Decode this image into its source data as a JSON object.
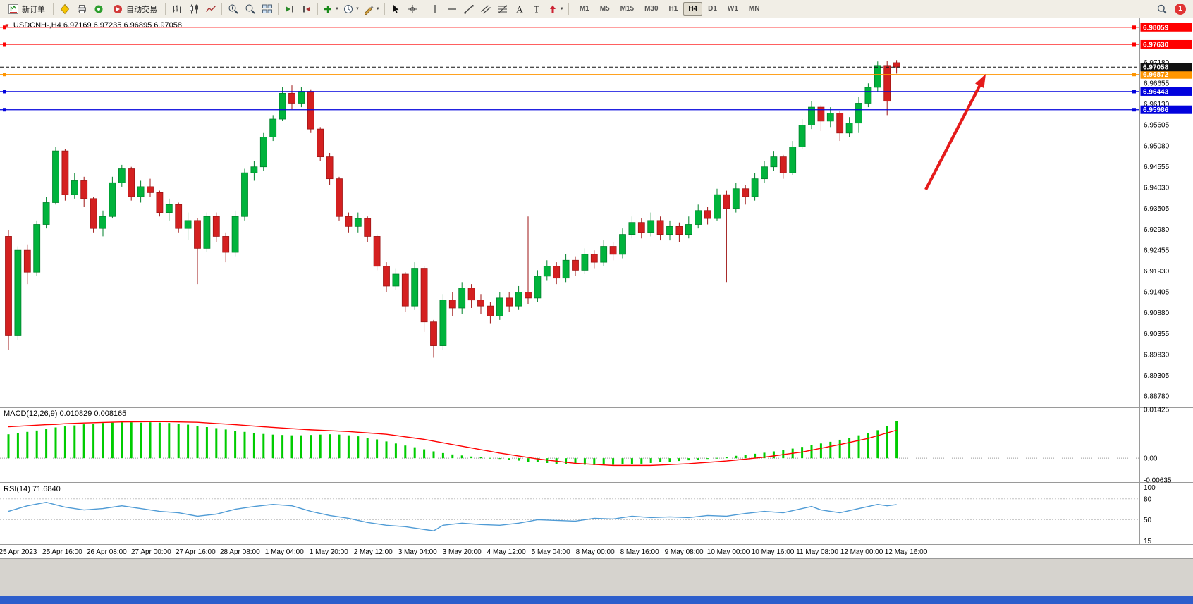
{
  "toolbar": {
    "new_order_label": "新订单",
    "autotrading_label": "自动交易",
    "timeframes": [
      "M1",
      "M5",
      "M15",
      "M30",
      "H1",
      "H4",
      "D1",
      "W1",
      "MN"
    ],
    "active_timeframe": "H4",
    "notification_count": "1",
    "icon_names": [
      "new-order",
      "metaeditor",
      "print-preview",
      "alerts",
      "autotrading",
      "bar-chart",
      "candlestick-chart",
      "line-chart",
      "zoom-in",
      "zoom-out",
      "tile-windows",
      "auto-scroll",
      "chart-shift",
      "indicators",
      "periods",
      "templates",
      "cursor",
      "crosshair",
      "vertical-line",
      "horizontal-line",
      "trendline",
      "equidistant-channel",
      "fibonacci",
      "text",
      "text-label",
      "arrows",
      "search",
      "notifications"
    ]
  },
  "chart": {
    "header": "USDCNH-,H4 6.97169 6.97235 6.96895 6.97058",
    "symbol": "USDCNH-",
    "timeframe": "H4",
    "ohlc": {
      "open": "6.97169",
      "high": "6.97235",
      "low": "6.96895",
      "close": "6.97058"
    },
    "macd_label": "MACD(12,26,9) 0.010829 0.008165",
    "rsi_label": "RSI(14) 71.6840"
  },
  "chart_data": {
    "type": "candlestick",
    "symbol": "USDCNH",
    "period": "H4",
    "price_range": [
      6.885,
      6.9825
    ],
    "price_axis_ticks": [
      "6.97180",
      "6.96655",
      "6.96130",
      "6.95605",
      "6.95080",
      "6.94555",
      "6.94030",
      "6.93505",
      "6.92980",
      "6.92455",
      "6.91930",
      "6.91405",
      "6.90880",
      "6.90355",
      "6.89830",
      "6.89305",
      "6.88780"
    ],
    "time_axis_labels": [
      "25 Apr 2023",
      "25 Apr 16:00",
      "26 Apr 08:00",
      "27 Apr 00:00",
      "27 Apr 16:00",
      "28 Apr 08:00",
      "1 May 04:00",
      "1 May 20:00",
      "2 May 12:00",
      "3 May 04:00",
      "3 May 20:00",
      "4 May 12:00",
      "5 May 04:00",
      "8 May 00:00",
      "8 May 16:00",
      "9 May 08:00",
      "10 May 00:00",
      "10 May 16:00",
      "11 May 08:00",
      "12 May 00:00",
      "12 May 16:00"
    ],
    "colors": {
      "bull": "#00b33c",
      "bull_stroke": "#00822b",
      "bear": "#d42020",
      "bear_stroke": "#9e1515",
      "bid_line": "#111111",
      "arrow": "#e51b1b"
    },
    "horizontal_lines": [
      {
        "price": 6.98059,
        "color": "#ff0000",
        "label": "6.98059",
        "style": "solid"
      },
      {
        "price": 6.9763,
        "color": "#ff0000",
        "label": "6.97630",
        "style": "solid"
      },
      {
        "price": 6.96872,
        "color": "#ff9500",
        "label": "6.96872",
        "style": "solid"
      },
      {
        "price": 6.96443,
        "color": "#0202dd",
        "label": "6.96443",
        "style": "solid"
      },
      {
        "price": 6.95986,
        "color": "#0202dd",
        "label": "6.95986",
        "style": "solid"
      }
    ],
    "bid_line": {
      "price": 6.97058,
      "color": "#111111",
      "label": "6.97058",
      "style": "dashed"
    },
    "candles": [
      [
        6.928,
        6.9295,
        6.8995,
        6.903
      ],
      [
        6.903,
        6.9255,
        6.902,
        6.9245
      ],
      [
        6.9245,
        6.926,
        6.916,
        6.919
      ],
      [
        6.919,
        6.932,
        6.918,
        6.931
      ],
      [
        6.931,
        6.938,
        6.93,
        6.9365
      ],
      [
        6.9365,
        6.9505,
        6.936,
        6.9495
      ],
      [
        6.9495,
        6.95,
        6.937,
        6.9385
      ],
      [
        6.9385,
        6.944,
        6.9375,
        6.942
      ],
      [
        6.942,
        6.943,
        6.9355,
        6.9375
      ],
      [
        6.9375,
        6.938,
        6.929,
        6.93
      ],
      [
        6.93,
        6.9345,
        6.928,
        6.933
      ],
      [
        6.933,
        6.943,
        6.9325,
        6.9415
      ],
      [
        6.9415,
        6.946,
        6.9405,
        6.945
      ],
      [
        6.945,
        6.9455,
        6.937,
        6.938
      ],
      [
        6.938,
        6.942,
        6.9365,
        6.9405
      ],
      [
        6.9405,
        6.9425,
        6.938,
        6.939
      ],
      [
        6.939,
        6.9395,
        6.933,
        6.934
      ],
      [
        6.934,
        6.9375,
        6.932,
        6.936
      ],
      [
        6.936,
        6.9365,
        6.929,
        6.93
      ],
      [
        6.93,
        6.934,
        6.927,
        6.932
      ],
      [
        6.932,
        6.9325,
        6.916,
        6.925
      ],
      [
        6.925,
        6.934,
        6.924,
        6.933
      ],
      [
        6.933,
        6.934,
        6.9265,
        6.928
      ],
      [
        6.928,
        6.929,
        6.9215,
        6.924
      ],
      [
        6.924,
        6.9345,
        6.923,
        6.933
      ],
      [
        6.933,
        6.945,
        6.932,
        6.944
      ],
      [
        6.944,
        6.947,
        6.942,
        6.9455
      ],
      [
        6.9455,
        6.954,
        6.9445,
        6.953
      ],
      [
        6.953,
        6.9585,
        6.952,
        6.9575
      ],
      [
        6.9575,
        6.9655,
        6.957,
        6.964
      ],
      [
        6.964,
        6.966,
        6.96,
        6.9615
      ],
      [
        6.9615,
        6.9655,
        6.9605,
        6.9645
      ],
      [
        6.9645,
        6.965,
        6.954,
        6.955
      ],
      [
        6.955,
        6.9555,
        6.947,
        6.948
      ],
      [
        6.948,
        6.949,
        6.941,
        6.9425
      ],
      [
        6.9425,
        6.943,
        6.932,
        6.933
      ],
      [
        6.933,
        6.934,
        6.929,
        6.9305
      ],
      [
        6.9305,
        6.934,
        6.929,
        6.9325
      ],
      [
        6.9325,
        6.933,
        6.9265,
        6.928
      ],
      [
        6.928,
        6.9285,
        6.9195,
        6.9205
      ],
      [
        6.9205,
        6.9215,
        6.914,
        6.9155
      ],
      [
        6.9155,
        6.92,
        6.9145,
        6.9185
      ],
      [
        6.9185,
        6.919,
        6.909,
        6.9105
      ],
      [
        6.9105,
        6.9215,
        6.9095,
        6.92
      ],
      [
        6.92,
        6.9205,
        6.904,
        6.9065
      ],
      [
        6.9065,
        6.907,
        6.8975,
        6.9005
      ],
      [
        6.9005,
        6.9135,
        6.8995,
        6.912
      ],
      [
        6.912,
        6.914,
        6.908,
        6.91
      ],
      [
        6.91,
        6.9165,
        6.9085,
        6.915
      ],
      [
        6.915,
        6.916,
        6.91,
        6.912
      ],
      [
        6.912,
        6.9135,
        6.9085,
        6.9105
      ],
      [
        6.9105,
        6.9115,
        6.906,
        6.908
      ],
      [
        6.908,
        6.914,
        6.907,
        6.9125
      ],
      [
        6.9125,
        6.914,
        6.909,
        6.9105
      ],
      [
        6.9105,
        6.9155,
        6.9095,
        6.914
      ],
      [
        6.914,
        6.933,
        6.911,
        6.9125
      ],
      [
        6.9125,
        6.9195,
        6.9115,
        6.918
      ],
      [
        6.918,
        6.922,
        6.917,
        6.9205
      ],
      [
        6.9205,
        6.9215,
        6.916,
        6.9175
      ],
      [
        6.9175,
        6.9235,
        6.9165,
        6.922
      ],
      [
        6.922,
        6.923,
        6.918,
        6.9195
      ],
      [
        6.9195,
        6.925,
        6.9185,
        6.9235
      ],
      [
        6.9235,
        6.9245,
        6.92,
        6.9215
      ],
      [
        6.9215,
        6.927,
        6.9205,
        6.9255
      ],
      [
        6.9255,
        6.9265,
        6.922,
        6.9235
      ],
      [
        6.9235,
        6.93,
        6.9225,
        6.9285
      ],
      [
        6.9285,
        6.933,
        6.9275,
        6.9315
      ],
      [
        6.9315,
        6.9325,
        6.9275,
        6.929
      ],
      [
        6.929,
        6.934,
        6.928,
        6.932
      ],
      [
        6.932,
        6.933,
        6.927,
        6.9285
      ],
      [
        6.9285,
        6.932,
        6.927,
        6.9305
      ],
      [
        6.9305,
        6.9315,
        6.9265,
        6.9285
      ],
      [
        6.9285,
        6.933,
        6.9275,
        6.931
      ],
      [
        6.931,
        6.936,
        6.93,
        6.9345
      ],
      [
        6.9345,
        6.9355,
        6.931,
        6.9325
      ],
      [
        6.9325,
        6.94,
        6.932,
        6.9385
      ],
      [
        6.9385,
        6.9395,
        6.9165,
        6.935
      ],
      [
        6.935,
        6.9415,
        6.934,
        6.94
      ],
      [
        6.94,
        6.941,
        6.936,
        6.938
      ],
      [
        6.938,
        6.944,
        6.937,
        6.9425
      ],
      [
        6.9425,
        6.947,
        6.9415,
        6.9455
      ],
      [
        6.9455,
        6.9495,
        6.9445,
        6.948
      ],
      [
        6.948,
        6.9485,
        6.9425,
        6.944
      ],
      [
        6.944,
        6.952,
        6.9435,
        6.9505
      ],
      [
        6.9505,
        6.9575,
        6.95,
        6.956
      ],
      [
        6.956,
        6.962,
        6.955,
        6.9605
      ],
      [
        6.9605,
        6.961,
        6.9545,
        6.957
      ],
      [
        6.957,
        6.9605,
        6.9555,
        6.959
      ],
      [
        6.959,
        6.9595,
        6.952,
        6.954
      ],
      [
        6.954,
        6.958,
        6.953,
        6.9565
      ],
      [
        6.9565,
        6.963,
        6.954,
        6.9615
      ],
      [
        6.9615,
        6.9665,
        6.9605,
        6.9655
      ],
      [
        6.9655,
        6.972,
        6.9645,
        6.971
      ],
      [
        6.971,
        6.9722,
        6.9585,
        6.962
      ],
      [
        6.97169,
        6.97235,
        6.96895,
        6.97058
      ]
    ],
    "macd": {
      "name": "MACD(12,26,9)",
      "current_values": [
        "0.010829",
        "0.008165"
      ],
      "axis_ticks": [
        "0.01425",
        "0.00",
        "-0.00635"
      ],
      "range": [
        -0.00635,
        0.01425
      ],
      "hist_color": "#00cc00",
      "signal_color": "#ff0000",
      "hist": [
        0.007,
        0.0074,
        0.0077,
        0.0081,
        0.0085,
        0.009,
        0.0093,
        0.0096,
        0.0099,
        0.0101,
        0.0103,
        0.0104,
        0.0105,
        0.0105,
        0.0104,
        0.0105,
        0.0104,
        0.0103,
        0.0101,
        0.0098,
        0.0094,
        0.0091,
        0.0088,
        0.0084,
        0.008,
        0.0077,
        0.0074,
        0.0071,
        0.0069,
        0.0068,
        0.0067,
        0.0067,
        0.0068,
        0.0069,
        0.007,
        0.0069,
        0.0067,
        0.0064,
        0.006,
        0.0055,
        0.0049,
        0.0043,
        0.0037,
        0.0032,
        0.0026,
        0.002,
        0.0015,
        0.0011,
        0.0008,
        0.0005,
        0.0003,
        0.0001,
        -0.0001,
        -0.0004,
        -0.0007,
        -0.001,
        -0.0012,
        -0.0014,
        -0.0016,
        -0.0017,
        -0.0018,
        -0.0019,
        -0.002,
        -0.002,
        -0.0019,
        -0.0018,
        -0.0017,
        -0.0016,
        -0.0014,
        -0.0012,
        -0.001,
        -0.0008,
        -0.0006,
        -0.0004,
        -0.0002,
        0.0001,
        0.0004,
        0.0007,
        0.001,
        0.0013,
        0.0016,
        0.002,
        0.0024,
        0.0028,
        0.0033,
        0.0038,
        0.0043,
        0.0048,
        0.0054,
        0.006,
        0.0067,
        0.0074,
        0.0082,
        0.0094,
        0.0108
      ],
      "signal": [
        0.0092,
        0.00935,
        0.0095,
        0.00965,
        0.0098,
        0.0099,
        0.0101,
        0.0102,
        0.0103,
        0.01037,
        0.01045,
        0.01052,
        0.0106,
        0.01063,
        0.01065,
        0.01068,
        0.0107,
        0.01065,
        0.0106,
        0.01055,
        0.0105,
        0.01033,
        0.01015,
        0.00998,
        0.0098,
        0.0096,
        0.0094,
        0.0092,
        0.009,
        0.00883,
        0.00865,
        0.00848,
        0.0083,
        0.00818,
        0.00805,
        0.00793,
        0.0078,
        0.0076,
        0.0074,
        0.0072,
        0.007,
        0.00663,
        0.00625,
        0.00588,
        0.0055,
        0.005,
        0.0045,
        0.004,
        0.0035,
        0.003,
        0.0025,
        0.002,
        0.0015,
        0.00108,
        0.00065,
        0.00023,
        -0.0002,
        -0.00053,
        -0.00085,
        -0.00118,
        -0.0015,
        -0.00165,
        -0.0018,
        -0.00195,
        -0.0021,
        -0.0021,
        -0.0021,
        -0.0021,
        -0.0021,
        -0.00198,
        -0.00185,
        -0.00173,
        -0.0016,
        -0.0014,
        -0.0012,
        -0.001,
        -0.0008,
        -0.00053,
        -0.00025,
        3e-05,
        0.0003,
        0.00068,
        0.00105,
        0.00143,
        0.0018,
        0.00235,
        0.0029,
        0.00345,
        0.004,
        0.0046,
        0.0052,
        0.0058,
        0.0066,
        0.0074,
        0.0082
      ]
    },
    "rsi": {
      "name": "RSI(14)",
      "current_value": "71.6840",
      "axis_ticks": [
        "100",
        "80",
        "50",
        "15"
      ],
      "range": [
        15,
        100
      ],
      "levels": [
        80,
        50
      ],
      "line_color": "#4f9bd5",
      "values": [
        62,
        66,
        70,
        72.5,
        75,
        71.5,
        68,
        66,
        64,
        65,
        66,
        68,
        70,
        68,
        66,
        64,
        62,
        61,
        60,
        57.5,
        55,
        56.5,
        58,
        61.5,
        65,
        67,
        69,
        70.5,
        72,
        71,
        70,
        66,
        62,
        59,
        56,
        54,
        52,
        49,
        46,
        44,
        42,
        41,
        40,
        38,
        36,
        34,
        42,
        43.5,
        45,
        44,
        43,
        42.5,
        42,
        43.5,
        45,
        47.5,
        50,
        49.5,
        49,
        48.5,
        48,
        50,
        52,
        51.5,
        51,
        53,
        55,
        54,
        53,
        53.5,
        54,
        53.5,
        53,
        54.5,
        56,
        55.5,
        55,
        57,
        59,
        60.5,
        62,
        61,
        60,
        63,
        66,
        69,
        64,
        62,
        60,
        63,
        66,
        69,
        72,
        70,
        71.68
      ]
    },
    "annotation_arrow": {
      "color": "#e51b1b",
      "direction": "up-right"
    }
  }
}
